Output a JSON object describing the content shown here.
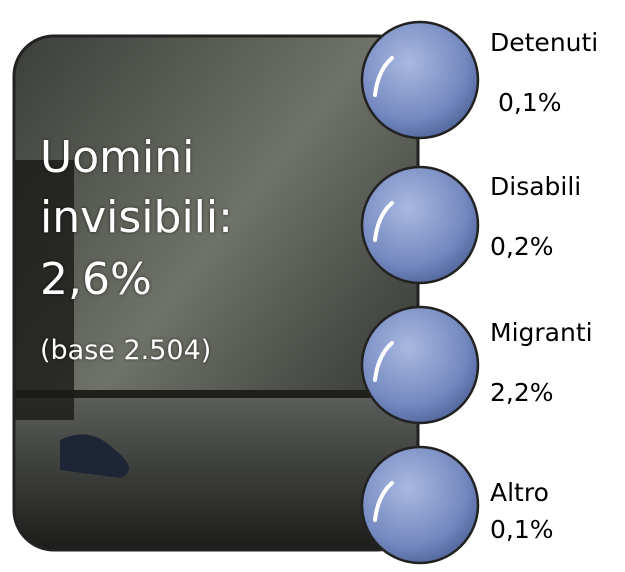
{
  "main": {
    "title": "Uomini invisibili:",
    "value": "2,6%",
    "note": "(base 2.504)"
  },
  "items": [
    {
      "label": "Detenuti",
      "value": "0,1%"
    },
    {
      "label": "Disabili",
      "value": "0,2%"
    },
    {
      "label": "Migranti",
      "value": "2,2%"
    },
    {
      "label": "Altro",
      "value": "0,1%"
    }
  ]
}
